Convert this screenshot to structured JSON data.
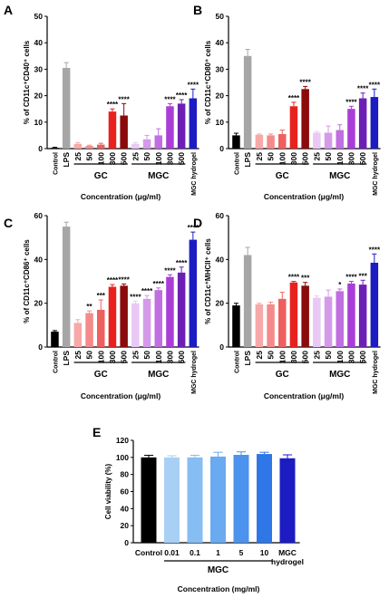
{
  "panels": [
    {
      "id": "A",
      "letter": "A",
      "ylabel": "% of CD11c⁺CD40⁺ cells",
      "xlabel": "Concentration (μg/ml)",
      "ylim": [
        0,
        50
      ],
      "ticks": [
        0,
        10,
        20,
        30,
        40,
        50
      ],
      "groups": [
        {
          "label": "GC",
          "from": 2,
          "to": 6
        },
        {
          "label": "MGC",
          "from": 7,
          "to": 11
        }
      ]
    },
    {
      "id": "B",
      "letter": "B",
      "ylabel": "% of CD11c⁺CD80⁺ cells",
      "xlabel": "Concentration (μg/ml)",
      "ylim": [
        0,
        50
      ],
      "ticks": [
        0,
        10,
        20,
        30,
        40,
        50
      ],
      "groups": [
        {
          "label": "GC",
          "from": 2,
          "to": 6
        },
        {
          "label": "MGC",
          "from": 7,
          "to": 11
        }
      ]
    },
    {
      "id": "C",
      "letter": "C",
      "ylabel": "% of CD11c⁺CD86⁺ cells",
      "xlabel": "Concentration (μg/ml)",
      "ylim": [
        0,
        60
      ],
      "ticks": [
        0,
        20,
        40,
        60
      ],
      "groups": [
        {
          "label": "GC",
          "from": 2,
          "to": 6
        },
        {
          "label": "MGC",
          "from": 7,
          "to": 11
        }
      ]
    },
    {
      "id": "D",
      "letter": "D",
      "ylabel": "% of CD11c⁺MHCII⁺ cells",
      "xlabel": "Concentration (μg/ml)",
      "ylim": [
        0,
        60
      ],
      "ticks": [
        0,
        20,
        40,
        60
      ],
      "groups": [
        {
          "label": "GC",
          "from": 2,
          "to": 6
        },
        {
          "label": "MGC",
          "from": 7,
          "to": 11
        }
      ]
    },
    {
      "id": "E",
      "letter": "E",
      "ylabel": "Cell viability (%)",
      "xlabel": "Concentration (mg/ml)",
      "ylim": [
        0,
        120
      ],
      "ticks": [
        0,
        20,
        40,
        60,
        80,
        100,
        120
      ],
      "groups": [
        {
          "label": "MGC",
          "from": 1,
          "to": 5
        }
      ]
    }
  ],
  "chart_data": [
    {
      "type": "bar",
      "panel": "A",
      "categories": [
        "Control",
        "LPS",
        "25",
        "50",
        "100",
        "300",
        "500",
        "25",
        "50",
        "100",
        "300",
        "500",
        "MGC hydrogel"
      ],
      "values": [
        0.3,
        30.5,
        1.8,
        1.0,
        1.5,
        14.0,
        12.5,
        1.8,
        3.5,
        5.0,
        16.0,
        17.0,
        19.0
      ],
      "errors": [
        0.2,
        2.0,
        0.5,
        0.3,
        0.5,
        1.0,
        4.5,
        0.5,
        1.5,
        2.5,
        1.0,
        1.5,
        3.5
      ],
      "significance": [
        "",
        "",
        "",
        "",
        "",
        "****",
        "****",
        "",
        "",
        "",
        "****",
        "****",
        "****"
      ],
      "colors": [
        "#000000",
        "#a6a6a6",
        "#f7a8a8",
        "#f48a8a",
        "#ee5f5f",
        "#e8211f",
        "#8b0a0a",
        "#e9c8f5",
        "#d49ae9",
        "#c06ee0",
        "#a93ed7",
        "#6d1fb5",
        "#1c1cc2"
      ],
      "ylabel": "% of CD11c⁺CD40⁺ cells",
      "xlabel": "Concentration (μg/ml)",
      "ylim": [
        0,
        50
      ]
    },
    {
      "type": "bar",
      "panel": "B",
      "categories": [
        "Control",
        "LPS",
        "25",
        "50",
        "100",
        "300",
        "500",
        "25",
        "50",
        "100",
        "300",
        "500",
        "MGC hydrogel"
      ],
      "values": [
        5.0,
        35.0,
        5.2,
        5.0,
        5.5,
        16.0,
        22.5,
        6.0,
        6.0,
        7.0,
        15.0,
        19.0,
        19.5
      ],
      "errors": [
        0.8,
        2.5,
        0.3,
        0.5,
        1.5,
        1.5,
        1.0,
        0.5,
        2.5,
        2.0,
        1.0,
        2.0,
        3.0
      ],
      "significance": [
        "",
        "",
        "",
        "",
        "",
        "****",
        "****",
        "",
        "",
        "",
        "****",
        "****",
        "****"
      ],
      "colors": [
        "#000000",
        "#a6a6a6",
        "#f7a8a8",
        "#f48a8a",
        "#ee5f5f",
        "#e8211f",
        "#8b0a0a",
        "#e9c8f5",
        "#d49ae9",
        "#c06ee0",
        "#a93ed7",
        "#6d1fb5",
        "#1c1cc2"
      ],
      "ylabel": "% of CD11c⁺CD80⁺ cells",
      "xlabel": "Concentration (μg/ml)",
      "ylim": [
        0,
        50
      ]
    },
    {
      "type": "bar",
      "panel": "C",
      "categories": [
        "Control",
        "LPS",
        "25",
        "50",
        "100",
        "300",
        "500",
        "25",
        "50",
        "100",
        "300",
        "500",
        "MGC hydrogel"
      ],
      "values": [
        7.0,
        55.0,
        11.0,
        15.5,
        17.0,
        27.5,
        28.0,
        20.0,
        22.0,
        26.0,
        32.0,
        34.0,
        49.0
      ],
      "errors": [
        0.5,
        2.0,
        1.5,
        1.0,
        4.5,
        1.0,
        0.8,
        1.0,
        1.5,
        1.0,
        1.0,
        2.5,
        3.5
      ],
      "significance": [
        "",
        "",
        "",
        "**",
        "***",
        "****",
        "****",
        "****",
        "****",
        "****",
        "****",
        "****",
        "****"
      ],
      "colors": [
        "#000000",
        "#a6a6a6",
        "#f7a8a8",
        "#f48a8a",
        "#ee5f5f",
        "#e8211f",
        "#8b0a0a",
        "#e9c8f5",
        "#d49ae9",
        "#c06ee0",
        "#a93ed7",
        "#6d1fb5",
        "#1c1cc2"
      ],
      "ylabel": "% of CD11c⁺CD86⁺ cells",
      "xlabel": "Concentration (μg/ml)",
      "ylim": [
        0,
        60
      ]
    },
    {
      "type": "bar",
      "panel": "D",
      "categories": [
        "Control",
        "LPS",
        "25",
        "50",
        "100",
        "300",
        "500",
        "25",
        "50",
        "100",
        "300",
        "500",
        "MGC hydrogel"
      ],
      "values": [
        19.0,
        42.0,
        19.5,
        19.5,
        22.0,
        29.5,
        28.0,
        22.5,
        23.0,
        25.5,
        29.0,
        28.5,
        38.5
      ],
      "errors": [
        1.0,
        3.5,
        0.5,
        1.0,
        3.0,
        0.5,
        1.5,
        0.8,
        3.0,
        1.0,
        1.0,
        2.0,
        4.0
      ],
      "significance": [
        "",
        "",
        "",
        "",
        "",
        "****",
        "***",
        "",
        "",
        "*",
        "****",
        "***",
        "****"
      ],
      "colors": [
        "#000000",
        "#a6a6a6",
        "#f7a8a8",
        "#f48a8a",
        "#ee5f5f",
        "#e8211f",
        "#8b0a0a",
        "#e9c8f5",
        "#d49ae9",
        "#c06ee0",
        "#a93ed7",
        "#6d1fb5",
        "#1c1cc2"
      ],
      "ylabel": "% of CD11c⁺MHCII⁺ cells",
      "xlabel": "Concentration (μg/ml)",
      "ylim": [
        0,
        60
      ]
    },
    {
      "type": "bar",
      "panel": "E",
      "categories": [
        "Control",
        "0.01",
        "0.1",
        "1",
        "5",
        "10",
        "MGC hydrogel"
      ],
      "values": [
        100,
        100,
        100,
        101,
        103,
        104,
        99
      ],
      "errors": [
        2.5,
        2.0,
        2.5,
        5.0,
        3.5,
        2.0,
        4.0
      ],
      "significance": [
        "",
        "",
        "",
        "",
        "",
        "",
        ""
      ],
      "colors": [
        "#000000",
        "#a8d0f5",
        "#86bdf2",
        "#6aaaf0",
        "#4b93ec",
        "#2f76e6",
        "#1c1cc2"
      ],
      "ylabel": "Cell viability (%)",
      "xlabel": "Concentration (mg/ml)",
      "ylim": [
        0,
        120
      ]
    }
  ]
}
